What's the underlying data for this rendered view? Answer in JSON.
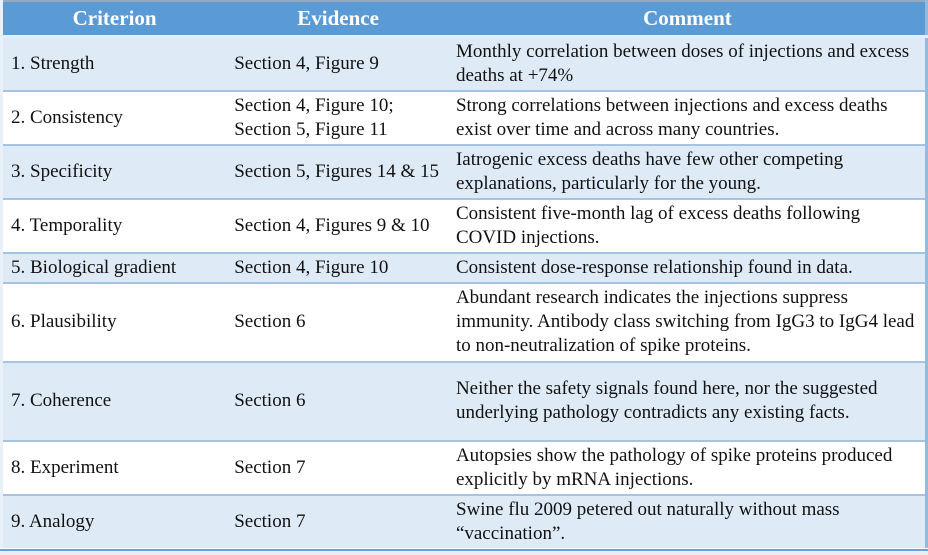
{
  "colors": {
    "header_bg": "#5b9bd5",
    "header_text": "#ffffff",
    "row_bg": "#ffffff",
    "row_alt_bg": "#deeaf6",
    "row_border": "#a7c4df",
    "bottom_bar": "#6fa0d6",
    "body_text": "#111111"
  },
  "table": {
    "columns": [
      "Criterion",
      "Evidence",
      "Comment"
    ],
    "rows": [
      {
        "criterion": "1. Strength",
        "evidence": "Section 4, Figure 9",
        "comment": "Monthly correlation between doses of injections and excess deaths at +74%"
      },
      {
        "criterion": "2. Consistency",
        "evidence": "Section 4, Figure 10; Section 5, Figure 11",
        "comment": "Strong correlations between injections and excess deaths exist over time and across many countries."
      },
      {
        "criterion": "3. Specificity",
        "evidence": "Section 5, Figures 14 & 15",
        "comment": "Iatrogenic excess deaths have few other competing explanations, particularly for the young."
      },
      {
        "criterion": "4. Temporality",
        "evidence": "Section 4, Figures 9 & 10",
        "comment": "Consistent five-month lag of excess deaths following COVID injections."
      },
      {
        "criterion": "5. Biological gradient",
        "evidence": "Section 4, Figure 10",
        "comment": "Consistent dose-response relationship found in data."
      },
      {
        "criterion": "6. Plausibility",
        "evidence": "Section 6",
        "comment": "Abundant research indicates the injections suppress immunity. Antibody class switching from IgG3 to IgG4 lead to non-neutralization of spike proteins."
      },
      {
        "criterion": "7. Coherence",
        "evidence": "Section 6",
        "comment": "Neither the safety signals found here, nor the suggested underlying pathology contradicts any existing facts."
      },
      {
        "criterion": "8. Experiment",
        "evidence": "Section 7",
        "comment": "Autopsies show the pathology of spike proteins produced explicitly by mRNA injections."
      },
      {
        "criterion": "9. Analogy",
        "evidence": "Section 7",
        "comment": "Swine flu 2009 petered out naturally without mass “vaccination”."
      }
    ]
  }
}
